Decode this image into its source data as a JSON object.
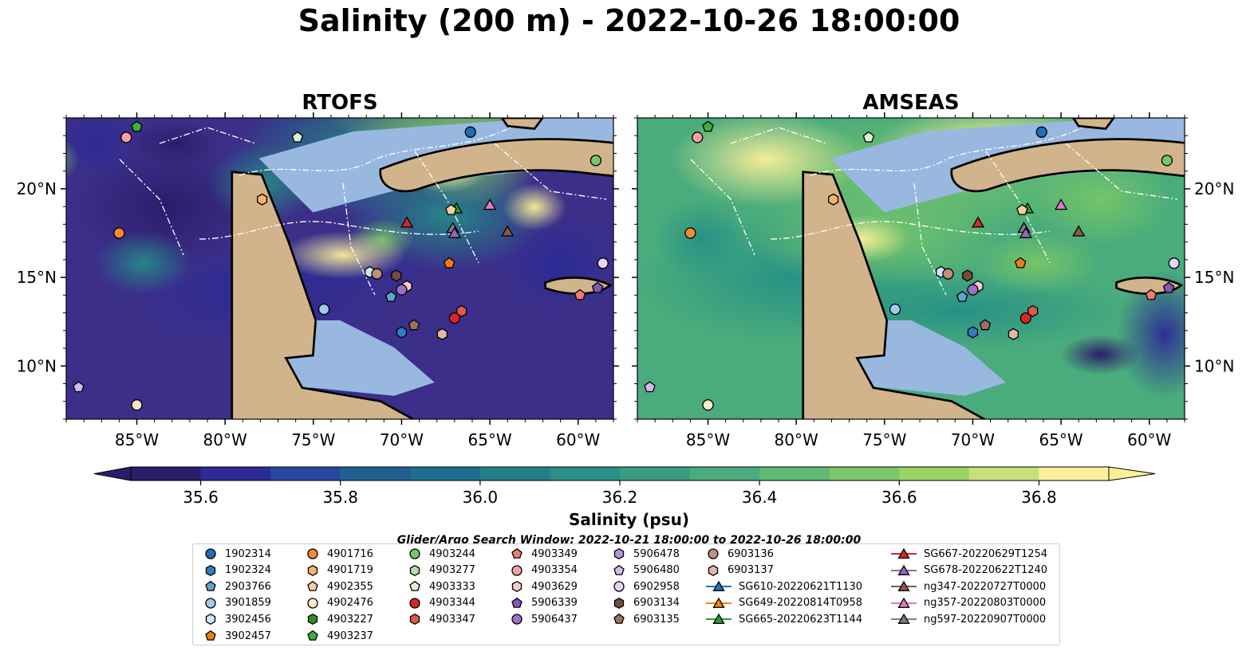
{
  "title": "Salinity (200 m) - 2022-10-26 18:00:00",
  "panels": [
    {
      "title": "RTOFS"
    },
    {
      "title": "AMSEAS"
    }
  ],
  "axes": {
    "lon_ticks": [
      "85°W",
      "80°W",
      "75°W",
      "70°W",
      "65°W",
      "60°W"
    ],
    "lon_values": [
      -85,
      -80,
      -75,
      -70,
      -65,
      -60
    ],
    "lat_ticks": [
      "20°N",
      "15°N",
      "10°N"
    ],
    "lat_values": [
      20,
      15,
      10
    ],
    "lon_range": [
      -89,
      -58
    ],
    "lat_range": [
      7,
      24
    ]
  },
  "colorbar": {
    "label": "Salinity (psu)",
    "ticks": [
      "35.6",
      "35.8",
      "36.0",
      "36.2",
      "36.4",
      "36.6",
      "36.8"
    ],
    "tick_values": [
      35.6,
      35.8,
      36.0,
      36.2,
      36.4,
      36.6,
      36.8
    ],
    "range": [
      35.5,
      36.9
    ],
    "extend": "both",
    "colors": [
      "#2c1d6b",
      "#2b2a96",
      "#2748a0",
      "#20608f",
      "#206f8e",
      "#237f89",
      "#2b8f86",
      "#389d82",
      "#4aab7c",
      "#5fba72",
      "#7ac867",
      "#9ad464",
      "#c8e079",
      "#fbf09a"
    ]
  },
  "colors": {
    "land": "#d2b48c",
    "shelf": "#98b8e0",
    "river": "#a8bcd4"
  },
  "search_window": "Glider/Argo Search Window: 2022-10-21 18:00:00 to 2022-10-26 18:00:00",
  "legend": {
    "columns": [
      [
        {
          "label": "1902314",
          "marker": "circle",
          "color": "#1f6eb4"
        },
        {
          "label": "1902324",
          "marker": "hexagon",
          "color": "#2e7fc2"
        },
        {
          "label": "2903766",
          "marker": "pentagon",
          "color": "#5fa3d4"
        },
        {
          "label": "3901859",
          "marker": "circle",
          "color": "#9ccbec"
        },
        {
          "label": "3902456",
          "marker": "hexagon",
          "color": "#cfe6f7"
        },
        {
          "label": "3902457",
          "marker": "pentagon",
          "color": "#f07c12"
        }
      ],
      [
        {
          "label": "4901716",
          "marker": "circle",
          "color": "#f28c30"
        },
        {
          "label": "4901719",
          "marker": "hexagon",
          "color": "#f6b26b"
        },
        {
          "label": "4902355",
          "marker": "pentagon",
          "color": "#f8cf9d"
        },
        {
          "label": "4902476",
          "marker": "circle",
          "color": "#fde8cb"
        },
        {
          "label": "4903227",
          "marker": "hexagon",
          "color": "#2a8f2a"
        },
        {
          "label": "4903237",
          "marker": "pentagon",
          "color": "#3fae3f"
        }
      ],
      [
        {
          "label": "4903244",
          "marker": "circle",
          "color": "#72c96b"
        },
        {
          "label": "4903277",
          "marker": "hexagon",
          "color": "#b0e2a6"
        },
        {
          "label": "4903333",
          "marker": "pentagon",
          "color": "#dff3d4"
        },
        {
          "label": "4903344",
          "marker": "circle",
          "color": "#d62728"
        },
        {
          "label": "4903347",
          "marker": "hexagon",
          "color": "#e05a4a"
        }
      ],
      [
        {
          "label": "4903349",
          "marker": "pentagon",
          "color": "#ee7b72"
        },
        {
          "label": "4903354",
          "marker": "circle",
          "color": "#f4a2a0"
        },
        {
          "label": "4903629",
          "marker": "hexagon",
          "color": "#f9cbc9"
        },
        {
          "label": "5906339",
          "marker": "pentagon",
          "color": "#8555b8"
        },
        {
          "label": "5906437",
          "marker": "circle",
          "color": "#9c70c9"
        }
      ],
      [
        {
          "label": "5906478",
          "marker": "hexagon",
          "color": "#b792dc"
        },
        {
          "label": "5906480",
          "marker": "pentagon",
          "color": "#d3b9ec"
        },
        {
          "label": "6902958",
          "marker": "circle",
          "color": "#e6d4f3"
        },
        {
          "label": "6903134",
          "marker": "hexagon",
          "color": "#7a4a3a"
        },
        {
          "label": "6903135",
          "marker": "pentagon",
          "color": "#a0705e"
        }
      ],
      [
        {
          "label": "6903136",
          "marker": "circle",
          "color": "#c08d7e"
        },
        {
          "label": "6903137",
          "marker": "hexagon",
          "color": "#e3b7a9"
        },
        {
          "label": "SG610-20220621T1130",
          "marker": "triangle",
          "color": "#1f77b4",
          "line": true
        },
        {
          "label": "SG649-20220814T0958",
          "marker": "triangle",
          "color": "#ff7f0e",
          "line": true
        },
        {
          "label": "SG665-20220623T1144",
          "marker": "triangle",
          "color": "#2ca02c",
          "line": true
        }
      ],
      [
        {
          "label": "SG667-20220629T1254",
          "marker": "triangle",
          "color": "#d62728",
          "line": true
        },
        {
          "label": "SG678-20220622T1240",
          "marker": "triangle",
          "color": "#9467bd",
          "line": true
        },
        {
          "label": "ng347-20220727T0000",
          "marker": "triangle",
          "color": "#8c564b",
          "line": true
        },
        {
          "label": "ng357-20220803T0000",
          "marker": "triangle",
          "color": "#e377c2",
          "line": true
        },
        {
          "label": "ng597-20220907T0000",
          "marker": "triangle",
          "color": "#7f7f7f",
          "line": true
        }
      ]
    ]
  },
  "observations": [
    {
      "id": "1902314",
      "lon": -66.1,
      "lat": 23.2
    },
    {
      "id": "4903237",
      "lon": -85.0,
      "lat": 23.5
    },
    {
      "id": "4903354",
      "lon": -85.6,
      "lat": 22.9
    },
    {
      "id": "4903333",
      "lon": -75.9,
      "lat": 22.9
    },
    {
      "id": "4903244",
      "lon": -59.0,
      "lat": 21.6
    },
    {
      "id": "4901719",
      "lon": -77.9,
      "lat": 19.4
    },
    {
      "id": "4901716",
      "lon": -86.0,
      "lat": 17.5
    },
    {
      "id": "SG667-20220629T1254",
      "lon": -69.7,
      "lat": 18.1
    },
    {
      "id": "SG665-20220623T1144",
      "lon": -66.9,
      "lat": 18.9
    },
    {
      "id": "ng357-20220803T0000",
      "lon": -65.0,
      "lat": 19.1
    },
    {
      "id": "4902355",
      "lon": -67.2,
      "lat": 18.8
    },
    {
      "id": "ng597-20220907T0000",
      "lon": -67.1,
      "lat": 17.8
    },
    {
      "id": "SG678-20220622T1240",
      "lon": -67.0,
      "lat": 17.5
    },
    {
      "id": "ng347-20220727T0000",
      "lon": -64.0,
      "lat": 17.6
    },
    {
      "id": "3902457",
      "lon": -67.3,
      "lat": 15.8
    },
    {
      "id": "6902958",
      "lon": -58.6,
      "lat": 15.8
    },
    {
      "id": "3902456",
      "lon": -71.8,
      "lat": 15.3
    },
    {
      "id": "6903136",
      "lon": -71.4,
      "lat": 15.2
    },
    {
      "id": "6903134",
      "lon": -70.3,
      "lat": 15.1
    },
    {
      "id": "4903629",
      "lon": -69.7,
      "lat": 14.5
    },
    {
      "id": "5906437",
      "lon": -70.0,
      "lat": 14.3
    },
    {
      "id": "5906339",
      "lon": -58.9,
      "lat": 14.4
    },
    {
      "id": "4903349",
      "lon": -59.9,
      "lat": 14.0
    },
    {
      "id": "2903766",
      "lon": -70.6,
      "lat": 13.9
    },
    {
      "id": "3901859",
      "lon": -74.4,
      "lat": 13.2
    },
    {
      "id": "4903347",
      "lon": -66.6,
      "lat": 13.1
    },
    {
      "id": "4903344",
      "lon": -67.0,
      "lat": 12.7
    },
    {
      "id": "6903135",
      "lon": -69.3,
      "lat": 12.3
    },
    {
      "id": "6903137",
      "lon": -67.7,
      "lat": 11.8
    },
    {
      "id": "1902324",
      "lon": -70.0,
      "lat": 11.9
    },
    {
      "id": "5906480",
      "lon": -88.3,
      "lat": 8.8
    },
    {
      "id": "4902476",
      "lon": -85.0,
      "lat": 7.8
    }
  ]
}
